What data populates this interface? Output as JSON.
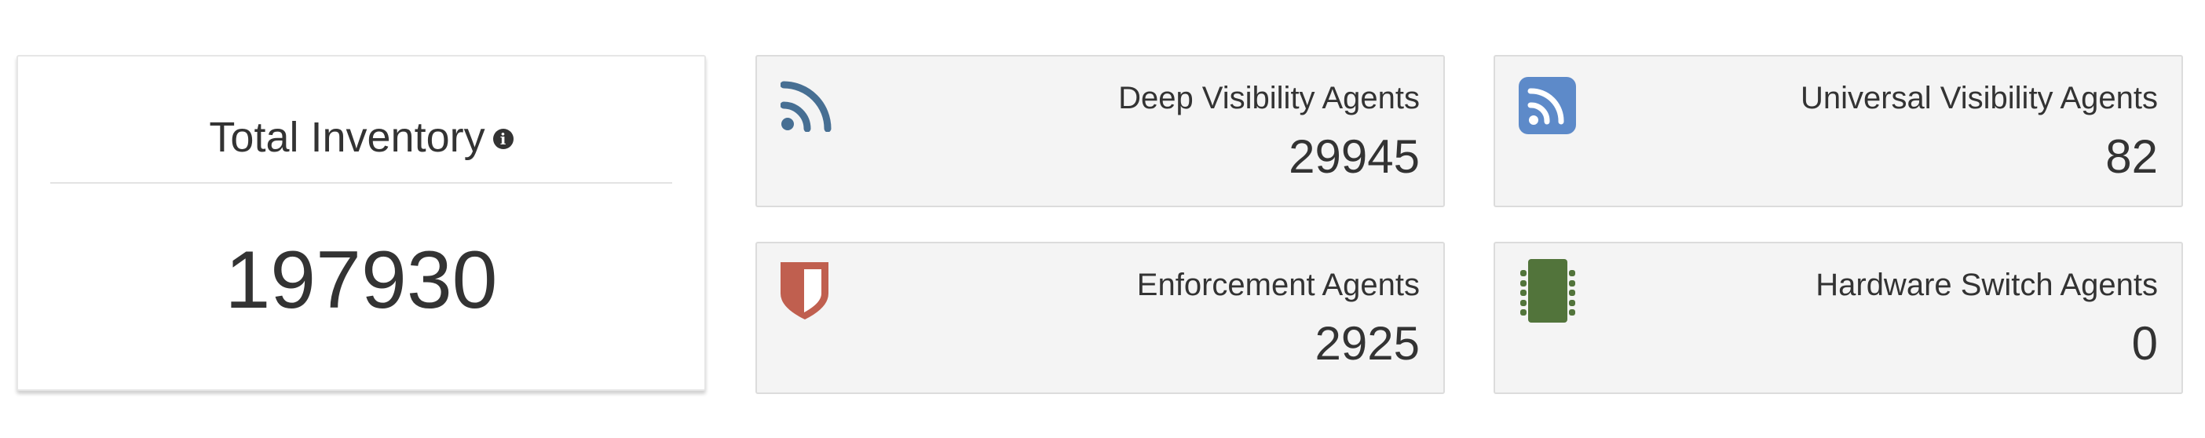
{
  "total_inventory": {
    "title": "Total Inventory",
    "info_icon": "info-circle-icon",
    "info_glyph": "i",
    "value": "197930"
  },
  "agents": [
    {
      "label": "Deep Visibility Agents",
      "value": "29945",
      "icon": "rss-icon",
      "color": "#476f93"
    },
    {
      "label": "Universal Visibility Agents",
      "value": "82",
      "icon": "rss-square-icon",
      "color": "#5d8ac9"
    },
    {
      "label": "Enforcement Agents",
      "value": "2925",
      "icon": "shield-icon",
      "color": "#c05f4f"
    },
    {
      "label": "Hardware Switch Agents",
      "value": "0",
      "icon": "chip-icon",
      "color": "#52743b"
    }
  ]
}
